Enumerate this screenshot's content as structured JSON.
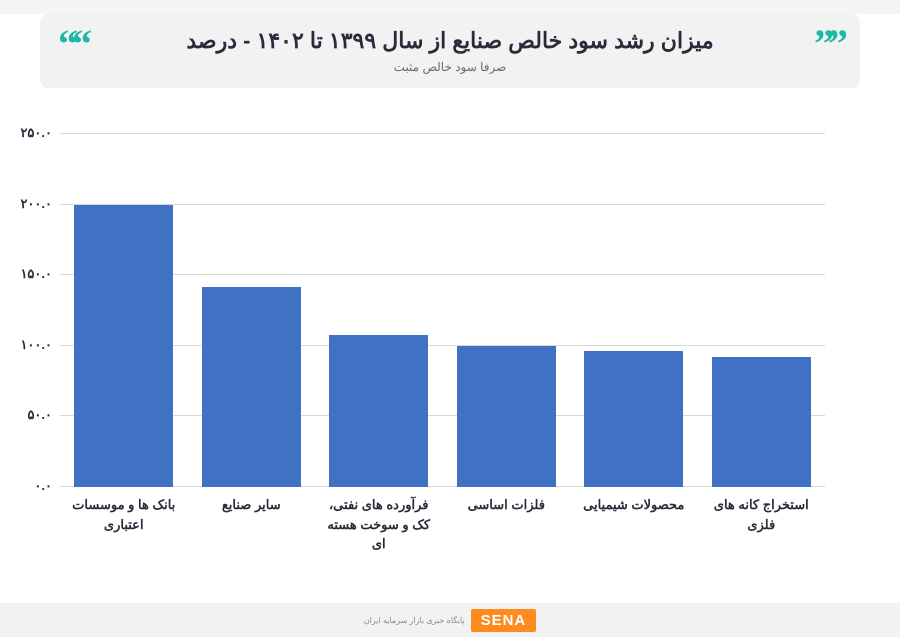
{
  "header": {
    "title": "میزان رشد سود خالص صنایع  از سال ۱۳۹۹ تا ۱۴۰۲ - درصد",
    "subtitle": "صرفا سود خالص مثبت"
  },
  "chart": {
    "type": "bar",
    "ylim": [
      0,
      250
    ],
    "ytick_step": 50,
    "yticks": [
      "۰.۰",
      "۵۰.۰",
      "۱۰۰.۰",
      "۱۵۰.۰",
      "۲۰۰.۰",
      "۲۵۰.۰"
    ],
    "categories": [
      "بانک ها  و موسسات اعتباری",
      "سایر صنایع",
      "فرآورده های نفتی، کک و سوخت هسته ای",
      "فلزات اساسی",
      "محصولات شیمیایی",
      "استخراج کانه های فلزی"
    ],
    "values": [
      200,
      142,
      108,
      100,
      96,
      92
    ],
    "bar_color": "#4171c5",
    "background_color": "#ffffff",
    "grid_color": "#d8d8d8",
    "title_fontsize": 22,
    "label_fontsize": 13,
    "bar_width": 0.78
  },
  "footer": {
    "logo_text": "SENA",
    "logo_sub": "پایگاه خبری بازار سرمایه ایران"
  },
  "colors": {
    "accent": "#1fb8a6",
    "logo_bg": "#ff8a1f",
    "text": "#2a2a3a",
    "header_bg": "#f2f2f2"
  }
}
